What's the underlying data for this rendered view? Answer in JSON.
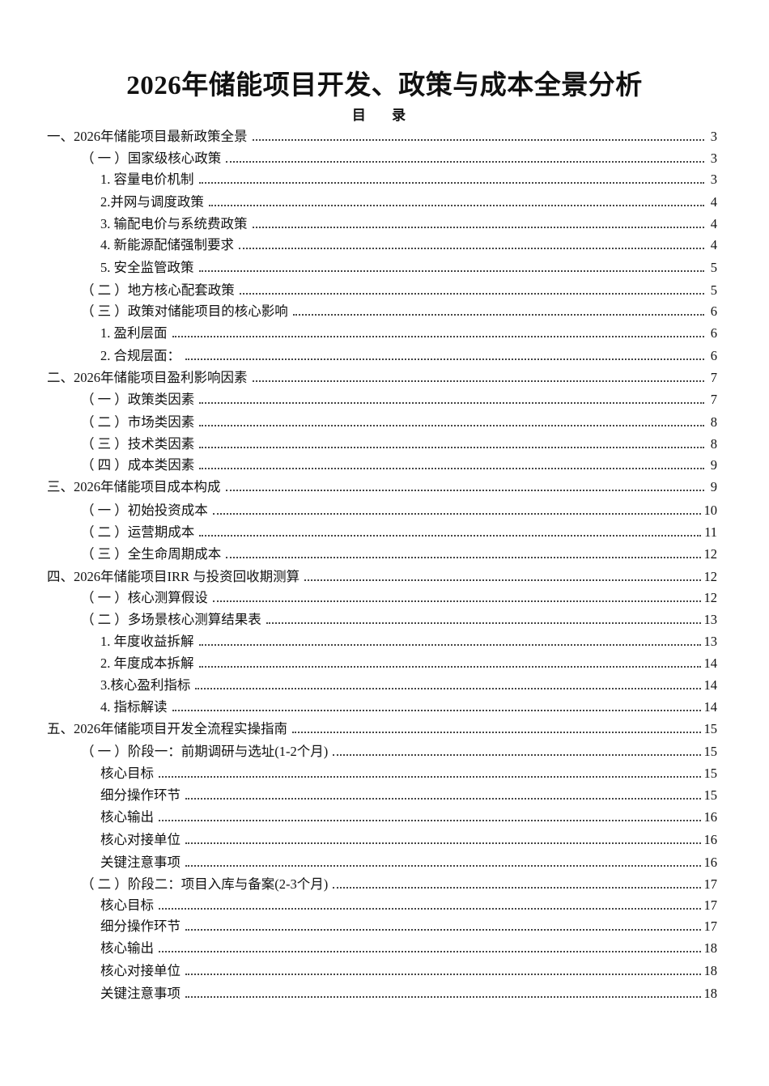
{
  "title": "2026年储能项目开发、政策与成本全景分析",
  "subtitle": "目 录",
  "toc": [
    {
      "level": 0,
      "label": "一、2026年储能项目最新政策全景",
      "page": "3"
    },
    {
      "level": 1,
      "label": "（ 一 ）国家级核心政策",
      "page": "3"
    },
    {
      "level": 2,
      "label": "1. 容量电价机制",
      "page": "3"
    },
    {
      "level": 2,
      "label": "2.并网与调度政策",
      "page": "4"
    },
    {
      "level": 2,
      "label": "3. 输配电价与系统费政策",
      "page": "4"
    },
    {
      "level": 2,
      "label": "4. 新能源配储强制要求",
      "page": "4"
    },
    {
      "level": 2,
      "label": "5. 安全监管政策",
      "page": "5"
    },
    {
      "level": 1,
      "label": "（ 二 ）地方核心配套政策",
      "page": "5"
    },
    {
      "level": 1,
      "label": "（ 三 ）政策对储能项目的核心影响",
      "page": "6"
    },
    {
      "level": 2,
      "label": "1. 盈利层面",
      "page": "6"
    },
    {
      "level": 2,
      "label": "2. 合规层面：",
      "page": "6"
    },
    {
      "level": 0,
      "label": "二、2026年储能项目盈利影响因素",
      "page": "7"
    },
    {
      "level": 1,
      "label": "（ 一 ）政策类因素",
      "page": "7"
    },
    {
      "level": 1,
      "label": "（ 二 ）市场类因素",
      "page": "8"
    },
    {
      "level": 1,
      "label": "（ 三 ）技术类因素",
      "page": "8"
    },
    {
      "level": 1,
      "label": "（ 四 ）成本类因素",
      "page": "9"
    },
    {
      "level": 0,
      "label": "三、2026年储能项目成本构成",
      "page": "9"
    },
    {
      "level": 1,
      "label": "（ 一 ）初始投资成本",
      "page": "10"
    },
    {
      "level": 1,
      "label": "（ 二 ）运营期成本",
      "page": "11"
    },
    {
      "level": 1,
      "label": "（ 三 ）全生命周期成本",
      "page": "12"
    },
    {
      "level": 0,
      "label": "四、2026年储能项目IRR 与投资回收期测算",
      "page": "12"
    },
    {
      "level": 1,
      "label": "（ 一 ）核心测算假设",
      "page": "12"
    },
    {
      "level": 1,
      "label": "（ 二 ）多场景核心测算结果表",
      "page": "13"
    },
    {
      "level": 2,
      "label": "1. 年度收益拆解",
      "page": "13"
    },
    {
      "level": 2,
      "label": "2. 年度成本拆解",
      "page": "14"
    },
    {
      "level": 2,
      "label": "3.核心盈利指标",
      "page": "14"
    },
    {
      "level": 2,
      "label": "4. 指标解读",
      "page": "14"
    },
    {
      "level": 0,
      "label": "五、2026年储能项目开发全流程实操指南",
      "page": "15"
    },
    {
      "level": 1,
      "label": "（ 一 ）阶段一：前期调研与选址(1-2个月)",
      "page": "15"
    },
    {
      "level": 2,
      "label": "核心目标",
      "page": "15"
    },
    {
      "level": 2,
      "label": "细分操作环节",
      "page": "15"
    },
    {
      "level": 2,
      "label": "核心输出",
      "page": "16"
    },
    {
      "level": 2,
      "label": "核心对接单位",
      "page": "16"
    },
    {
      "level": 2,
      "label": "关键注意事项",
      "page": "16"
    },
    {
      "level": 1,
      "label": "（ 二 ）阶段二：项目入库与备案(2-3个月)",
      "page": "17"
    },
    {
      "level": 2,
      "label": "核心目标",
      "page": "17"
    },
    {
      "level": 2,
      "label": "细分操作环节",
      "page": "17"
    },
    {
      "level": 2,
      "label": "核心输出",
      "page": "18"
    },
    {
      "level": 2,
      "label": "核心对接单位",
      "page": "18"
    },
    {
      "level": 2,
      "label": "关键注意事项",
      "page": "18"
    }
  ]
}
